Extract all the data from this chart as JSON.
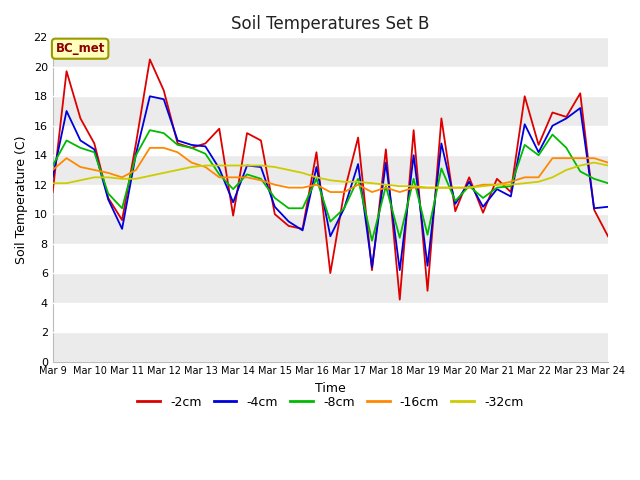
{
  "title": "Soil Temperatures Set B",
  "xlabel": "Time",
  "ylabel": "Soil Temperature (C)",
  "ylim": [
    0,
    22
  ],
  "yticks": [
    0,
    2,
    4,
    6,
    8,
    10,
    12,
    14,
    16,
    18,
    20,
    22
  ],
  "x_labels": [
    "Mar 9",
    "Mar 10",
    "Mar 11",
    "Mar 12",
    "Mar 13",
    "Mar 14",
    "Mar 15",
    "Mar 16",
    "Mar 17",
    "Mar 18",
    "Mar 19",
    "Mar 20",
    "Mar 21",
    "Mar 22",
    "Mar 23",
    "Mar 24"
  ],
  "annotation_label": "BC_met",
  "series_order": [
    "-2cm",
    "-4cm",
    "-8cm",
    "-16cm",
    "-32cm"
  ],
  "series": {
    "-2cm": {
      "color": "#dd0000",
      "data": [
        11.5,
        19.7,
        16.5,
        14.8,
        11.1,
        9.6,
        14.8,
        20.5,
        18.4,
        14.8,
        14.5,
        14.8,
        15.8,
        9.9,
        15.5,
        15.0,
        10.0,
        9.2,
        9.0,
        14.2,
        6.0,
        11.5,
        15.2,
        6.2,
        14.4,
        4.2,
        15.7,
        4.8,
        16.5,
        10.2,
        12.5,
        10.1,
        12.4,
        11.5,
        18.0,
        14.7,
        16.9,
        16.6,
        18.2,
        10.3,
        8.5
      ]
    },
    "-4cm": {
      "color": "#0000dd",
      "data": [
        12.5,
        17.0,
        15.0,
        14.4,
        11.0,
        9.0,
        14.1,
        18.0,
        17.8,
        15.0,
        14.7,
        14.6,
        13.1,
        10.8,
        13.3,
        13.2,
        10.5,
        9.5,
        8.9,
        13.2,
        8.5,
        10.4,
        13.4,
        6.4,
        13.5,
        6.2,
        14.0,
        6.5,
        14.8,
        10.7,
        12.2,
        10.5,
        11.7,
        11.2,
        16.1,
        14.2,
        16.0,
        16.5,
        17.2,
        10.4,
        10.5
      ]
    },
    "-8cm": {
      "color": "#00bb00",
      "data": [
        13.3,
        15.0,
        14.5,
        14.2,
        11.4,
        10.4,
        14.0,
        15.7,
        15.5,
        14.7,
        14.5,
        14.1,
        12.7,
        11.7,
        12.7,
        12.4,
        11.1,
        10.4,
        10.4,
        12.4,
        9.5,
        10.4,
        12.4,
        8.2,
        11.9,
        8.4,
        12.4,
        8.6,
        13.1,
        10.9,
        11.9,
        11.1,
        11.8,
        11.9,
        14.7,
        14.0,
        15.4,
        14.5,
        12.9,
        12.4,
        12.1
      ]
    },
    "-16cm": {
      "color": "#ff8800",
      "data": [
        13.0,
        13.8,
        13.2,
        13.0,
        12.8,
        12.5,
        13.0,
        14.5,
        14.5,
        14.2,
        13.5,
        13.2,
        12.5,
        12.5,
        12.5,
        12.3,
        12.0,
        11.8,
        11.8,
        12.0,
        11.5,
        11.5,
        12.0,
        11.5,
        11.8,
        11.5,
        11.8,
        11.8,
        11.8,
        11.8,
        11.8,
        12.0,
        12.0,
        12.2,
        12.5,
        12.5,
        13.8,
        13.8,
        13.8,
        13.8,
        13.5
      ]
    },
    "-32cm": {
      "color": "#cccc00",
      "data": [
        12.1,
        12.1,
        12.3,
        12.5,
        12.5,
        12.4,
        12.4,
        12.6,
        12.8,
        13.0,
        13.2,
        13.3,
        13.3,
        13.3,
        13.3,
        13.3,
        13.2,
        13.0,
        12.8,
        12.5,
        12.3,
        12.2,
        12.2,
        12.1,
        12.0,
        11.9,
        11.9,
        11.8,
        11.8,
        11.8,
        11.8,
        11.9,
        12.0,
        12.0,
        12.1,
        12.2,
        12.5,
        13.0,
        13.3,
        13.5,
        13.3
      ]
    }
  },
  "fig_bg_color": "#ffffff",
  "plot_bg_color": "#ffffff",
  "grid_color": "#dddddd",
  "band_colors": [
    "#ebebeb",
    "#ffffff"
  ],
  "legend_series": [
    "-2cm",
    "-4cm",
    "-8cm",
    "-16cm",
    "-32cm"
  ],
  "legend_colors": [
    "#dd0000",
    "#0000dd",
    "#00bb00",
    "#ff8800",
    "#cccc00"
  ]
}
